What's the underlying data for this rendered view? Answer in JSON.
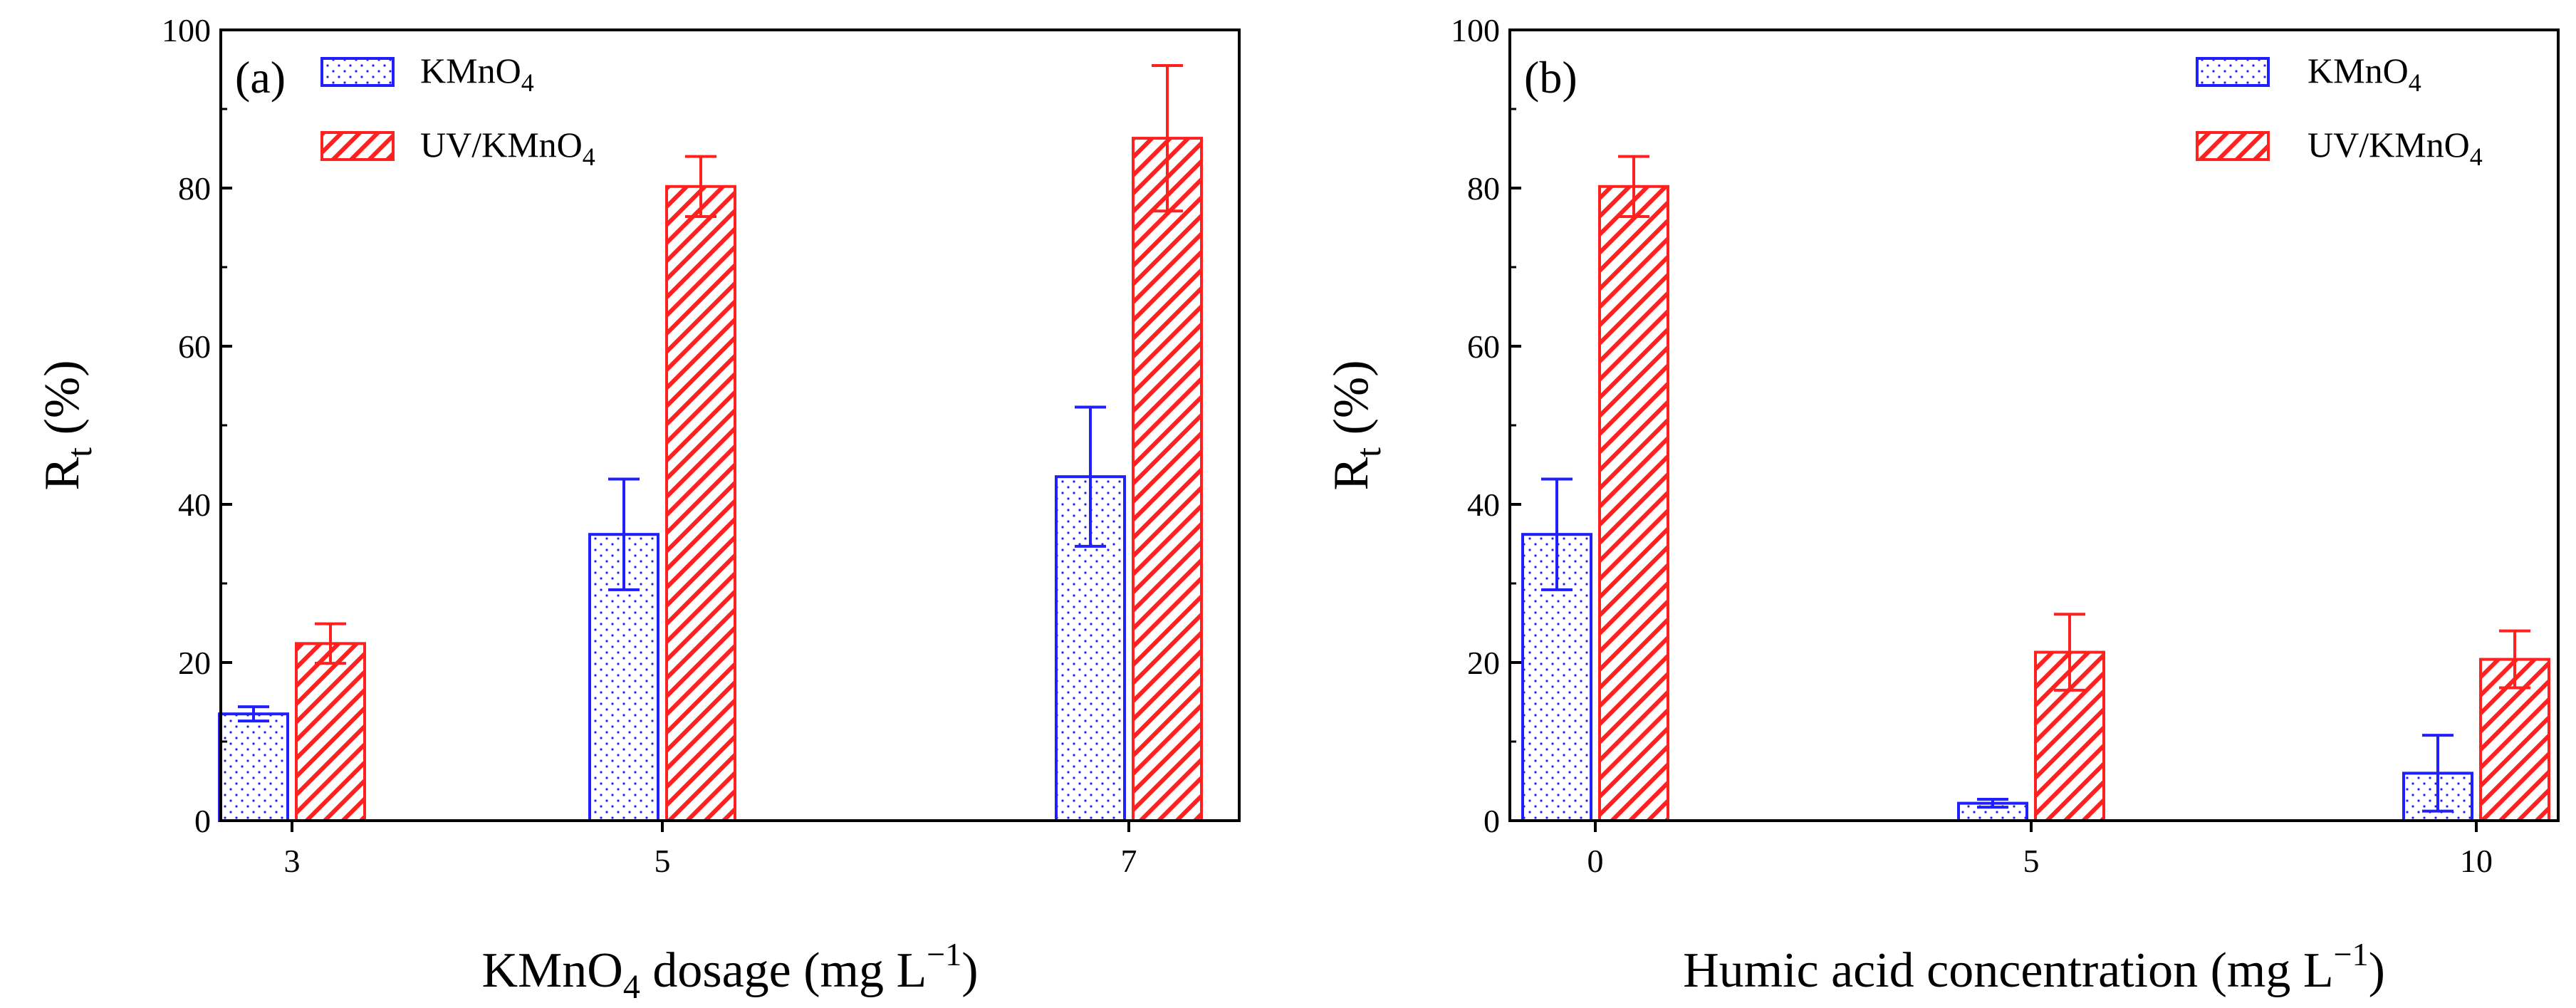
{
  "colors": {
    "kmno4": "#1f1fff",
    "uv_kmno4": "#ff2020",
    "axis": "#000000"
  },
  "chart_data": [
    {
      "type": "bar",
      "panel_label": "(a)",
      "categories": [
        "3",
        "5",
        "7"
      ],
      "xlabel_main": "KMnO",
      "xlabel_sub": "4",
      "xlabel_rest": " dosage (mg L",
      "xlabel_sup": "−1",
      "xlabel_close": ")",
      "ylabel_main": "R",
      "ylabel_sub": "t",
      "ylabel_rest": " (%)",
      "ylim": [
        0,
        100
      ],
      "yticks": [
        "0",
        "20",
        "40",
        "60",
        "80",
        "100"
      ],
      "legend_position": "top-left",
      "series": [
        {
          "name": "KMnO",
          "name_sub": "4",
          "values": [
            13.5,
            36.2,
            43.5
          ],
          "errors": [
            0.9,
            7.0,
            8.8
          ]
        },
        {
          "name": "UV/KMnO",
          "name_sub": "4",
          "values": [
            22.4,
            80.2,
            86.3
          ],
          "errors": [
            2.5,
            3.8,
            9.2
          ]
        }
      ]
    },
    {
      "type": "bar",
      "panel_label": "(b)",
      "categories": [
        "0",
        "5",
        "10"
      ],
      "xlabel_main": "Humic acid concentration (mg L",
      "xlabel_sub": "",
      "xlabel_rest": "",
      "xlabel_sup": "−1",
      "xlabel_close": ")",
      "ylabel_main": "R",
      "ylabel_sub": "t",
      "ylabel_rest": " (%)",
      "ylim": [
        0,
        100
      ],
      "yticks": [
        "0",
        "20",
        "40",
        "60",
        "80",
        "100"
      ],
      "legend_position": "top-right",
      "series": [
        {
          "name": "KMnO",
          "name_sub": "4",
          "values": [
            36.2,
            2.2,
            6.0
          ],
          "errors": [
            7.0,
            0.5,
            4.8
          ]
        },
        {
          "name": "UV/KMnO",
          "name_sub": "4",
          "values": [
            80.2,
            21.3,
            20.4
          ],
          "errors": [
            3.8,
            4.8,
            3.6
          ]
        }
      ]
    }
  ]
}
